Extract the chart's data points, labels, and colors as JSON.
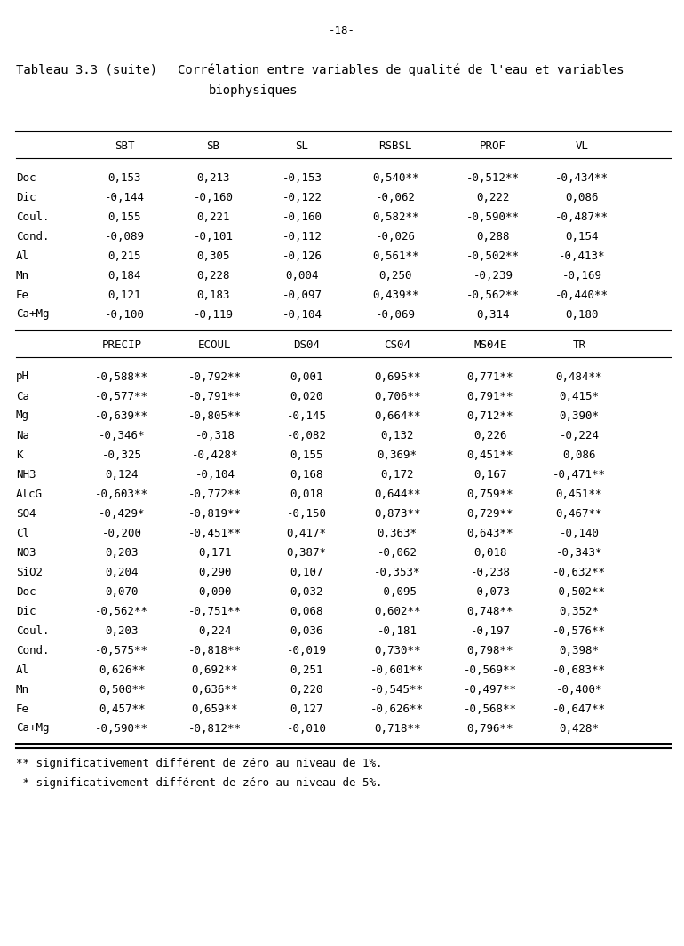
{
  "page_number": "-18-",
  "title_left": "Tableau 3.3 (suite)",
  "title_right_line1": "Corrélation entre variables de qualité de l'eau et variables",
  "title_right_line2": "biophysiques",
  "table1_headers": [
    "",
    "SBT",
    "SB",
    "SL",
    "RSBSL",
    "PROF",
    "VL"
  ],
  "table1_rows": [
    [
      "Doc",
      "0,153",
      "0,213",
      "-0,153",
      "0,540**",
      "-0,512**",
      "-0,434**"
    ],
    [
      "Dic",
      "-0,144",
      "-0,160",
      "-0,122",
      "-0,062",
      "0,222",
      "0,086"
    ],
    [
      "Coul.",
      "0,155",
      "0,221",
      "-0,160",
      "0,582**",
      "-0,590**",
      "-0,487**"
    ],
    [
      "Cond.",
      "-0,089",
      "-0,101",
      "-0,112",
      "-0,026",
      "0,288",
      "0,154"
    ],
    [
      "Al",
      "0,215",
      "0,305",
      "-0,126",
      "0,561**",
      "-0,502**",
      "-0,413*"
    ],
    [
      "Mn",
      "0,184",
      "0,228",
      "0,004",
      "0,250",
      "-0,239",
      "-0,169"
    ],
    [
      "Fe",
      "0,121",
      "0,183",
      "-0,097",
      "0,439**",
      "-0,562**",
      "-0,440**"
    ],
    [
      "Ca+Mg",
      "-0,100",
      "-0,119",
      "-0,104",
      "-0,069",
      "0,314",
      "0,180"
    ]
  ],
  "table2_headers": [
    "",
    "PRECIP",
    "ECOUL",
    "DS04",
    "CS04",
    "MS04E",
    "TR"
  ],
  "table2_rows": [
    [
      "pH",
      "-0,588**",
      "-0,792**",
      "0,001",
      "0,695**",
      "0,771**",
      "0,484**"
    ],
    [
      "Ca",
      "-0,577**",
      "-0,791**",
      "0,020",
      "0,706**",
      "0,791**",
      "0,415*"
    ],
    [
      "Mg",
      "-0,639**",
      "-0,805**",
      "-0,145",
      "0,664**",
      "0,712**",
      "0,390*"
    ],
    [
      "Na",
      "-0,346*",
      "-0,318",
      "-0,082",
      "0,132",
      "0,226",
      "-0,224"
    ],
    [
      "K",
      "-0,325",
      "-0,428*",
      "0,155",
      "0,369*",
      "0,451**",
      "0,086"
    ],
    [
      "NH3",
      "0,124",
      "-0,104",
      "0,168",
      "0,172",
      "0,167",
      "-0,471**"
    ],
    [
      "AlcG",
      "-0,603**",
      "-0,772**",
      "0,018",
      "0,644**",
      "0,759**",
      "0,451**"
    ],
    [
      "SO4",
      "-0,429*",
      "-0,819**",
      "-0,150",
      "0,873**",
      "0,729**",
      "0,467**"
    ],
    [
      "Cl",
      "-0,200",
      "-0,451**",
      "0,417*",
      "0,363*",
      "0,643**",
      "-0,140"
    ],
    [
      "NO3",
      "0,203",
      "0,171",
      "0,387*",
      "-0,062",
      "0,018",
      "-0,343*"
    ],
    [
      "SiO2",
      "0,204",
      "0,290",
      "0,107",
      "-0,353*",
      "-0,238",
      "-0,632**"
    ],
    [
      "Doc",
      "0,070",
      "0,090",
      "0,032",
      "-0,095",
      "-0,073",
      "-0,502**"
    ],
    [
      "Dic",
      "-0,562**",
      "-0,751**",
      "0,068",
      "0,602**",
      "0,748**",
      "0,352*"
    ],
    [
      "Coul.",
      "0,203",
      "0,224",
      "0,036",
      "-0,181",
      "-0,197",
      "-0,576**"
    ],
    [
      "Cond.",
      "-0,575**",
      "-0,818**",
      "-0,019",
      "0,730**",
      "0,798**",
      "0,398*"
    ],
    [
      "Al",
      "0,626**",
      "0,692**",
      "0,251",
      "-0,601**",
      "-0,569**",
      "-0,683**"
    ],
    [
      "Mn",
      "0,500**",
      "0,636**",
      "0,220",
      "-0,545**",
      "-0,497**",
      "-0,400*"
    ],
    [
      "Fe",
      "0,457**",
      "0,659**",
      "0,127",
      "-0,626**",
      "-0,568**",
      "-0,647**"
    ],
    [
      "Ca+Mg",
      "-0,590**",
      "-0,812**",
      "-0,010",
      "0,718**",
      "0,796**",
      "0,428*"
    ]
  ],
  "footnote1": "** significativement différent de zéro au niveau de 1%.",
  "footnote2": " * significativement différent de zéro au niveau de 5%.",
  "bg_color": "#ffffff",
  "text_color": "#000000",
  "font_family": "monospace",
  "font_size": 9.0,
  "title_font_size": 10.0
}
